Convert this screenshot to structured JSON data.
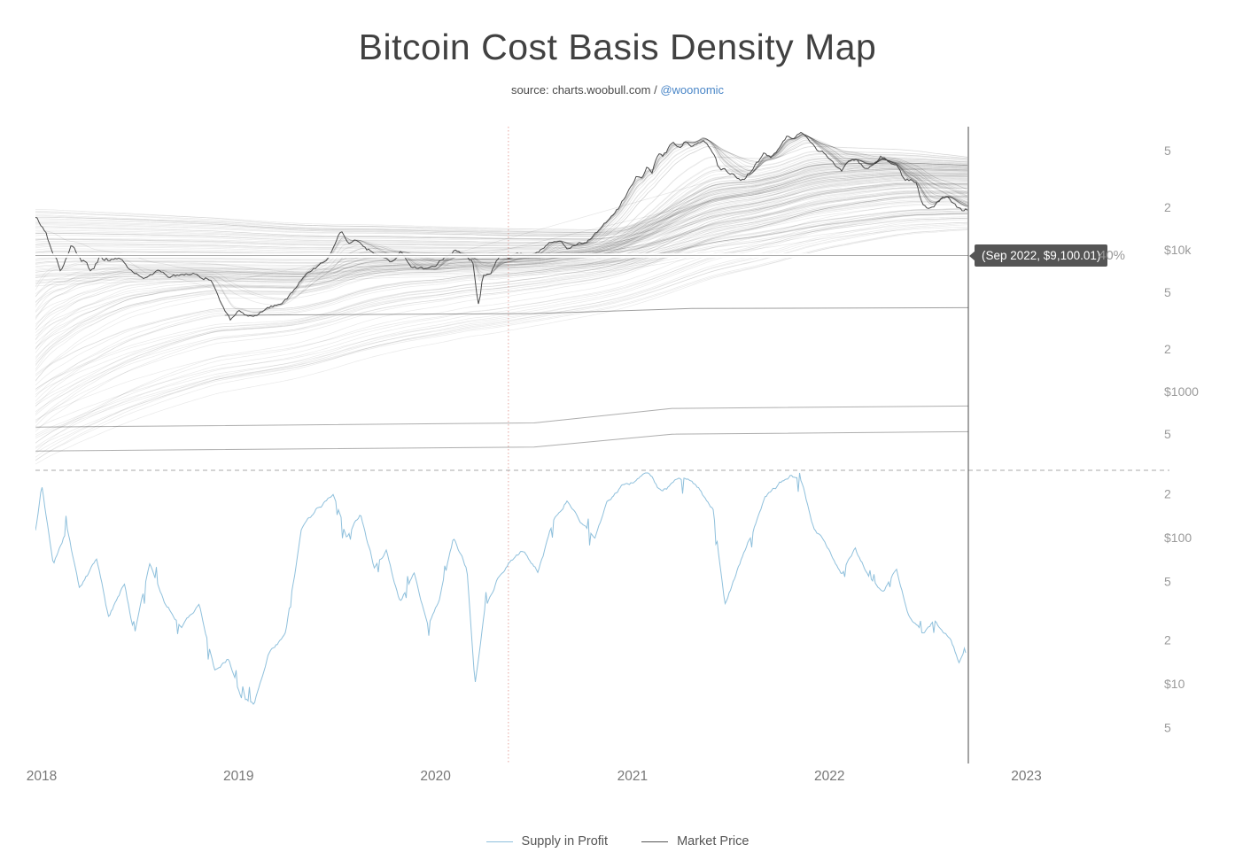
{
  "header": {
    "title": "Bitcoin Cost Basis Density Map",
    "source_prefix": "source: charts.woobull.com / ",
    "source_link": "@woonomic"
  },
  "tooltip": {
    "label": "(Sep 2022, $9,100.01)",
    "side_label": "40%"
  },
  "legend": [
    {
      "label": "Supply in Profit",
      "color": "#8fc0dc"
    },
    {
      "label": "Market Price",
      "color": "#555555"
    }
  ],
  "colors": {
    "price_line": "#4a4a4a",
    "supply_line": "#8fc0dc",
    "density_line": "#000000",
    "cursor_line": "#4a4a4a",
    "halving_line": "rgba(205,92,82,0.55)",
    "separator": "#aaaaaa",
    "crosshair": "#aaaaaa",
    "axis_label": "#9a9a9a",
    "year_label": "#777777"
  },
  "chart_data": {
    "type": "line",
    "title": "Bitcoin Cost Basis Density Map",
    "x_axis": {
      "labels": [
        "2018",
        "2019",
        "2020",
        "2021",
        "2022",
        "2023"
      ],
      "years": [
        2018,
        2019,
        2020,
        2021,
        2022,
        2023
      ]
    },
    "y_axis_top_panel": {
      "scale": "log-usd",
      "ticks": [
        {
          "label": "5",
          "value": 50000
        },
        {
          "label": "2",
          "value": 20000
        },
        {
          "label": "$10k",
          "value": 10000
        },
        {
          "label": "5",
          "value": 5000
        },
        {
          "label": "2",
          "value": 2000
        },
        {
          "label": "$1000",
          "value": 1000
        },
        {
          "label": "5",
          "value": 500
        }
      ]
    },
    "y_axis_bottom_panel": {
      "scale": "log-usd",
      "ticks": [
        {
          "label": "2",
          "value": 200
        },
        {
          "label": "$100",
          "value": 100
        },
        {
          "label": "5",
          "value": 50
        },
        {
          "label": "2",
          "value": 20
        },
        {
          "label": "$10",
          "value": 10
        },
        {
          "label": "5",
          "value": 5
        }
      ]
    },
    "crosshair": {
      "date_label": "Sep 2022",
      "price": 9100.01,
      "percent_in_profit": 40,
      "t": 2022.705
    },
    "halving_line_t": 2020.37,
    "data_end_t": 2022.705,
    "market_price": {
      "name": "Market Price",
      "points": [
        [
          2017.97,
          17000
        ],
        [
          2018.02,
          13500
        ],
        [
          2018.05,
          10200
        ],
        [
          2018.1,
          6800
        ],
        [
          2018.15,
          10500
        ],
        [
          2018.2,
          8200
        ],
        [
          2018.25,
          6900
        ],
        [
          2018.3,
          9100
        ],
        [
          2018.35,
          8300
        ],
        [
          2018.4,
          8900
        ],
        [
          2018.45,
          7300
        ],
        [
          2018.52,
          6200
        ],
        [
          2018.56,
          6700
        ],
        [
          2018.6,
          7400
        ],
        [
          2018.65,
          6300
        ],
        [
          2018.7,
          6500
        ],
        [
          2018.75,
          6600
        ],
        [
          2018.82,
          6450
        ],
        [
          2018.86,
          6350
        ],
        [
          2018.88,
          5500
        ],
        [
          2018.91,
          4200
        ],
        [
          2018.96,
          3250
        ],
        [
          2019.0,
          3800
        ],
        [
          2019.05,
          3500
        ],
        [
          2019.1,
          3650
        ],
        [
          2019.16,
          3950
        ],
        [
          2019.22,
          4150
        ],
        [
          2019.28,
          5300
        ],
        [
          2019.35,
          7400
        ],
        [
          2019.4,
          8000
        ],
        [
          2019.45,
          8800
        ],
        [
          2019.49,
          11000
        ],
        [
          2019.52,
          13300
        ],
        [
          2019.56,
          10800
        ],
        [
          2019.6,
          11900
        ],
        [
          2019.65,
          10300
        ],
        [
          2019.7,
          9600
        ],
        [
          2019.78,
          8200
        ],
        [
          2019.82,
          9500
        ],
        [
          2019.88,
          7300
        ],
        [
          2019.95,
          7150
        ],
        [
          2020.0,
          7200
        ],
        [
          2020.05,
          8900
        ],
        [
          2020.1,
          9900
        ],
        [
          2020.15,
          8900
        ],
        [
          2020.19,
          7900
        ],
        [
          2020.22,
          4100
        ],
        [
          2020.24,
          6700
        ],
        [
          2020.28,
          6800
        ],
        [
          2020.33,
          8900
        ],
        [
          2020.37,
          8600
        ],
        [
          2020.42,
          9500
        ],
        [
          2020.47,
          9100
        ],
        [
          2020.52,
          9250
        ],
        [
          2020.58,
          11400
        ],
        [
          2020.63,
          11700
        ],
        [
          2020.67,
          10400
        ],
        [
          2020.72,
          10750
        ],
        [
          2020.77,
          11500
        ],
        [
          2020.82,
          13800
        ],
        [
          2020.87,
          16500
        ],
        [
          2020.92,
          19200
        ],
        [
          2020.96,
          23500
        ],
        [
          2021.0,
          29500
        ],
        [
          2021.02,
          33000
        ],
        [
          2021.05,
          31500
        ],
        [
          2021.07,
          38500
        ],
        [
          2021.1,
          35500
        ],
        [
          2021.13,
          48000
        ],
        [
          2021.16,
          47000
        ],
        [
          2021.2,
          57500
        ],
        [
          2021.24,
          54000
        ],
        [
          2021.27,
          59500
        ],
        [
          2021.3,
          55500
        ],
        [
          2021.33,
          59500
        ],
        [
          2021.36,
          63500
        ],
        [
          2021.4,
          50000
        ],
        [
          2021.44,
          37000
        ],
        [
          2021.47,
          36500
        ],
        [
          2021.52,
          33500
        ],
        [
          2021.56,
          31500
        ],
        [
          2021.6,
          34500
        ],
        [
          2021.63,
          40000
        ],
        [
          2021.67,
          47500
        ],
        [
          2021.7,
          44500
        ],
        [
          2021.74,
          51000
        ],
        [
          2021.78,
          61500
        ],
        [
          2021.82,
          60500
        ],
        [
          2021.86,
          67500
        ],
        [
          2021.9,
          57000
        ],
        [
          2021.94,
          49500
        ],
        [
          2021.98,
          46500
        ],
        [
          2022.02,
          41500
        ],
        [
          2022.06,
          36500
        ],
        [
          2022.1,
          44000
        ],
        [
          2022.14,
          43000
        ],
        [
          2022.18,
          38500
        ],
        [
          2022.22,
          39500
        ],
        [
          2022.26,
          45500
        ],
        [
          2022.3,
          40000
        ],
        [
          2022.34,
          38500
        ],
        [
          2022.38,
          30000
        ],
        [
          2022.42,
          29500
        ],
        [
          2022.44,
          28500
        ],
        [
          2022.47,
          21000
        ],
        [
          2022.5,
          19200
        ],
        [
          2022.53,
          20800
        ],
        [
          2022.56,
          23200
        ],
        [
          2022.6,
          24100
        ],
        [
          2022.63,
          21500
        ],
        [
          2022.66,
          19800
        ],
        [
          2022.705,
          19500
        ]
      ]
    },
    "supply_in_profit": {
      "name": "Supply in Profit",
      "unit": "%",
      "points": [
        [
          2017.97,
          81
        ],
        [
          2018.0,
          96
        ],
        [
          2018.06,
          70
        ],
        [
          2018.13,
          82
        ],
        [
          2018.19,
          63
        ],
        [
          2018.28,
          72
        ],
        [
          2018.34,
          53
        ],
        [
          2018.42,
          64
        ],
        [
          2018.47,
          48
        ],
        [
          2018.55,
          70
        ],
        [
          2018.62,
          58
        ],
        [
          2018.71,
          51
        ],
        [
          2018.8,
          57
        ],
        [
          2018.88,
          37
        ],
        [
          2018.95,
          41
        ],
        [
          2019.01,
          28
        ],
        [
          2019.08,
          26
        ],
        [
          2019.15,
          41
        ],
        [
          2019.24,
          48
        ],
        [
          2019.32,
          81
        ],
        [
          2019.41,
          89
        ],
        [
          2019.48,
          93
        ],
        [
          2019.55,
          78
        ],
        [
          2019.62,
          86
        ],
        [
          2019.69,
          69
        ],
        [
          2019.75,
          74
        ],
        [
          2019.82,
          58
        ],
        [
          2019.89,
          69
        ],
        [
          2019.96,
          52
        ],
        [
          2020.02,
          59
        ],
        [
          2020.09,
          78
        ],
        [
          2020.16,
          68
        ],
        [
          2020.2,
          31
        ],
        [
          2020.25,
          56
        ],
        [
          2020.32,
          67
        ],
        [
          2020.38,
          72
        ],
        [
          2020.45,
          75
        ],
        [
          2020.52,
          68
        ],
        [
          2020.6,
          84
        ],
        [
          2020.67,
          92
        ],
        [
          2020.74,
          84
        ],
        [
          2020.81,
          78
        ],
        [
          2020.87,
          89
        ],
        [
          2020.95,
          96
        ],
        [
          2021.01,
          97
        ],
        [
          2021.08,
          99
        ],
        [
          2021.15,
          93
        ],
        [
          2021.22,
          97
        ],
        [
          2021.28,
          98
        ],
        [
          2021.34,
          95
        ],
        [
          2021.41,
          88
        ],
        [
          2021.47,
          58
        ],
        [
          2021.54,
          70
        ],
        [
          2021.6,
          79
        ],
        [
          2021.67,
          92
        ],
        [
          2021.74,
          96
        ],
        [
          2021.8,
          99
        ],
        [
          2021.86,
          96
        ],
        [
          2021.92,
          82
        ],
        [
          2022.0,
          75
        ],
        [
          2022.06,
          68
        ],
        [
          2022.13,
          76
        ],
        [
          2022.2,
          66
        ],
        [
          2022.27,
          62
        ],
        [
          2022.34,
          69
        ],
        [
          2022.4,
          55
        ],
        [
          2022.47,
          49
        ],
        [
          2022.54,
          53
        ],
        [
          2022.61,
          47
        ],
        [
          2022.66,
          39
        ],
        [
          2022.685,
          44
        ],
        [
          2022.705,
          40
        ]
      ]
    },
    "density_model": {
      "groups": [
        {
          "name": "old-coins",
          "count": 70,
          "v0_min": 300,
          "v0_max": 5200,
          "alpha_min": 0.003,
          "alpha_max": 0.045,
          "down_factor": 0.1,
          "opacity": 0.085
        },
        {
          "name": "top-band",
          "count": 62,
          "v0_min": 5600,
          "v0_max": 19500,
          "alpha_min": 0.0025,
          "alpha_max": 0.02,
          "down_factor": 0.1,
          "opacity": 0.09
        },
        {
          "name": "fresh",
          "count": 30,
          "alpha_min": 0.06,
          "alpha_max": 0.6,
          "down_factor": 0.45,
          "opacity": 0.1
        }
      ],
      "static_levels": [
        {
          "points": [
            [
              2018.93,
              3450
            ],
            [
              2020.5,
              3550
            ],
            [
              2021.3,
              3850
            ],
            [
              2022.705,
              3900
            ]
          ],
          "opacity": 0.38
        },
        {
          "points": [
            [
              2017.97,
              560
            ],
            [
              2020.5,
              600
            ],
            [
              2021.2,
              760
            ],
            [
              2022.705,
              790
            ]
          ],
          "opacity": 0.32
        },
        {
          "points": [
            [
              2017.97,
              380
            ],
            [
              2020.5,
              405
            ],
            [
              2021.2,
              500
            ],
            [
              2022.705,
              520
            ]
          ],
          "opacity": 0.32
        }
      ]
    }
  }
}
